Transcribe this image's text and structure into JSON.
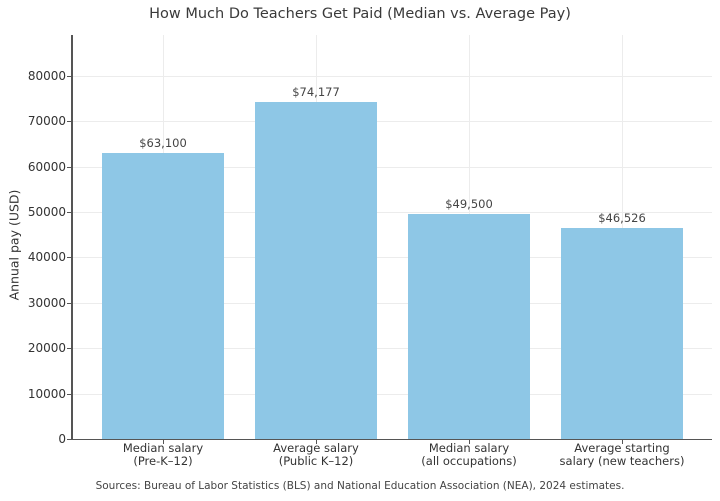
{
  "chart_data": {
    "type": "bar",
    "title": "How Much Do Teachers Get Paid (Median vs. Average Pay)",
    "xlabel": "",
    "ylabel": "Annual pay (USD)",
    "ylim": [
      0,
      88000
    ],
    "yticks": [
      "0",
      "10000",
      "20000",
      "30000",
      "40000",
      "50000",
      "60000",
      "70000",
      "80000"
    ],
    "grid": true,
    "categories": [
      [
        "Median salary",
        "(Pre-K–12)"
      ],
      [
        "Average salary",
        "(Public K–12)"
      ],
      [
        "Median salary",
        "(all occupations)"
      ],
      [
        "Average starting",
        "salary (new teachers)"
      ]
    ],
    "values": [
      63100,
      74177,
      49500,
      46526
    ],
    "data_labels": [
      "$63,100",
      "$74,177",
      "$49,500",
      "$46,526"
    ],
    "bar_color": "#8ec7e6",
    "annotation": "Sources: Bureau of Labor Statistics (BLS) and National Education Association (NEA), 2024 estimates."
  }
}
